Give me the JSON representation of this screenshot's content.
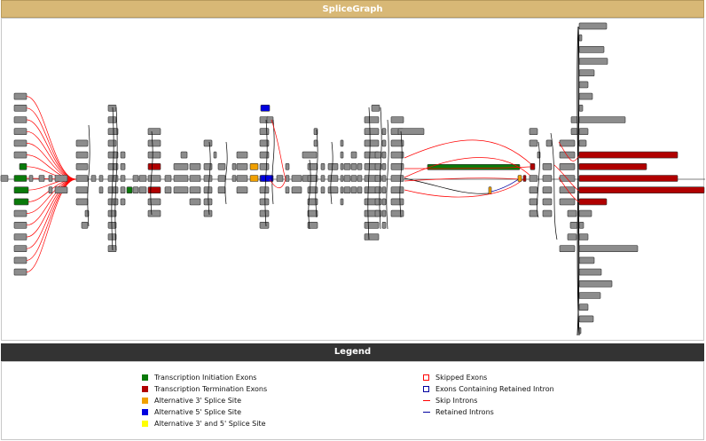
{
  "title": "SpliceGraph",
  "legend_title": "Legend",
  "colors": {
    "exon": "#8c8c8c",
    "initiation": "#0a7a0a",
    "termination": "#b00000",
    "alt3": "#f0a000",
    "alt5": "#0000e0",
    "alt35": "#ffff00",
    "skip": "#ff0000",
    "retained": "#0000a0",
    "edge": "#000000"
  },
  "legend": {
    "initiation": "Transcription Initiation Exons",
    "termination": "Transcription Termination Exons",
    "alt3": "Alternative 3' Splice Site",
    "alt5": "Alternative 5' Splice Site",
    "alt35": "Alternative 3' and 5' Splice Site",
    "skipped": "Skipped Exons",
    "retained_exons": "Exons Containing Retained Intron",
    "skip_introns": "Skip Introns",
    "retained_introns": "Retained Introns"
  }
}
